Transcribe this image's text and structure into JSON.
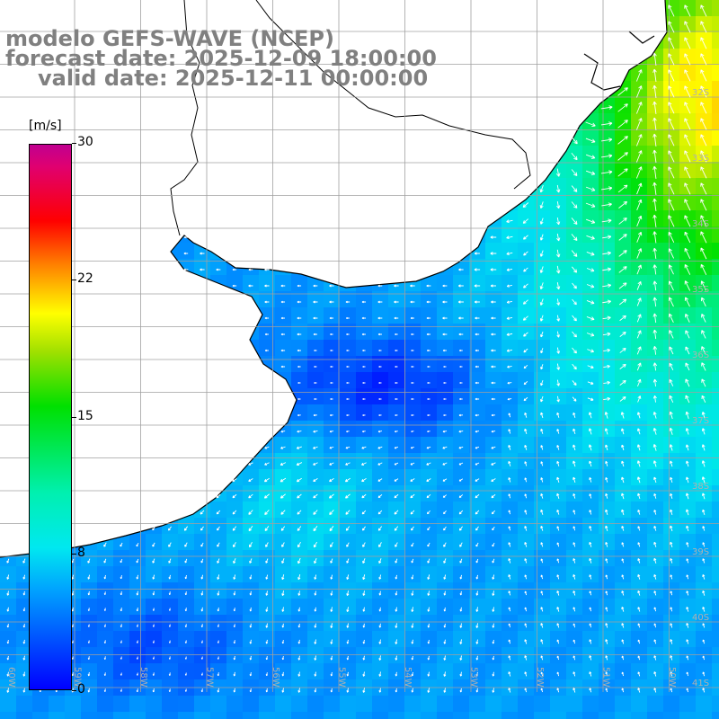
{
  "title": {
    "line1": "modelo GEFS-WAVE (NCEP)",
    "line2": "forecast date: 2025-12-09 18:00:00",
    "line3": "valid date: 2025-12-11 00:00:00"
  },
  "colorbar": {
    "unit": "[m/s]",
    "ticks": [
      {
        "label": "30",
        "value": 30
      },
      {
        "label": "22",
        "value": 22
      },
      {
        "label": "15",
        "value": 15
      },
      {
        "label": "8",
        "value": 8
      },
      {
        "label": "0",
        "value": 0
      }
    ],
    "range": [
      0,
      30
    ]
  },
  "colors": {
    "land": "#ffffff",
    "grid": "#a0a0a0",
    "coast": "#000000",
    "arrow": "#ffffff",
    "grid_label": "#b0b0b0"
  },
  "map": {
    "lat_labels": [
      "32S",
      "33S",
      "34S",
      "35S",
      "36S",
      "37S",
      "38S",
      "39S",
      "40S",
      "41S"
    ],
    "lon_labels": [
      "60W",
      "59W",
      "58W",
      "57W",
      "56W",
      "55W",
      "54W",
      "53W",
      "52W",
      "51W",
      "50W"
    ],
    "wind_field_samples": [
      {
        "region": "north-east offshore",
        "speed_ms": 18,
        "direction_deg": 330
      },
      {
        "region": "east offshore",
        "speed_ms": 14,
        "direction_deg": 330
      },
      {
        "region": "Rio de la Plata mouth",
        "speed_ms": 2,
        "direction_deg": 270
      },
      {
        "region": "central shelf",
        "speed_ms": 6,
        "direction_deg": 190
      },
      {
        "region": "south-west",
        "speed_ms": 3,
        "direction_deg": 200
      }
    ]
  }
}
